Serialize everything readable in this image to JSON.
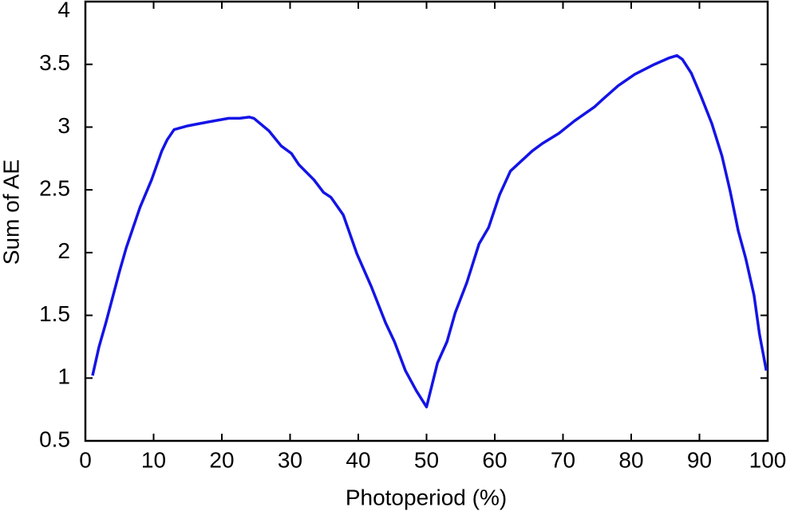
{
  "chart_data": {
    "type": "line",
    "xlabel": "Photoperiod (%)",
    "ylabel": "Sum of AE",
    "x": [
      1.05,
      2,
      3,
      5,
      6,
      8,
      9.7,
      11.2,
      12,
      13,
      15,
      17.9,
      21,
      22.6,
      24,
      24.7,
      26.9,
      28.7,
      30.2,
      31.3,
      33.5,
      34.9,
      36,
      37.8,
      39.8,
      41.9,
      44,
      45.3,
      46.9,
      48.5,
      50,
      51.6,
      53,
      54.2,
      55.9,
      57.7,
      59.1,
      60.7,
      62.3,
      63.5,
      65.5,
      67,
      69.4,
      71.7,
      74.6,
      75.8,
      78.1,
      80.5,
      83.4,
      85.5,
      86.7,
      87.5,
      88.8,
      90.2,
      91.8,
      93.3,
      94.5,
      95.7,
      96.8,
      98,
      98.8,
      99.8
    ],
    "series": [
      {
        "name": "Sum of AE",
        "color": "#1414e6",
        "values": [
          1.02,
          1.25,
          1.44,
          1.85,
          2.04,
          2.36,
          2.58,
          2.81,
          2.9,
          2.98,
          3.01,
          3.04,
          3.07,
          3.07,
          3.08,
          3.07,
          2.97,
          2.85,
          2.79,
          2.7,
          2.58,
          2.48,
          2.44,
          2.3,
          1.99,
          1.73,
          1.44,
          1.29,
          1.06,
          0.9,
          0.77,
          1.12,
          1.29,
          1.52,
          1.76,
          2.07,
          2.2,
          2.46,
          2.65,
          2.71,
          2.81,
          2.87,
          2.95,
          3.05,
          3.16,
          3.22,
          3.33,
          3.42,
          3.5,
          3.55,
          3.57,
          3.54,
          3.43,
          3.25,
          3.03,
          2.77,
          2.49,
          2.17,
          1.95,
          1.66,
          1.35,
          1.06
        ]
      }
    ],
    "xlim": [
      0,
      100
    ],
    "xticks": [
      0,
      10,
      20,
      30,
      40,
      50,
      60,
      70,
      80,
      90,
      100
    ],
    "ylim": [
      0.5,
      4
    ],
    "yticks": [
      0.5,
      1,
      1.5,
      2,
      2.5,
      3,
      3.5,
      4
    ]
  }
}
